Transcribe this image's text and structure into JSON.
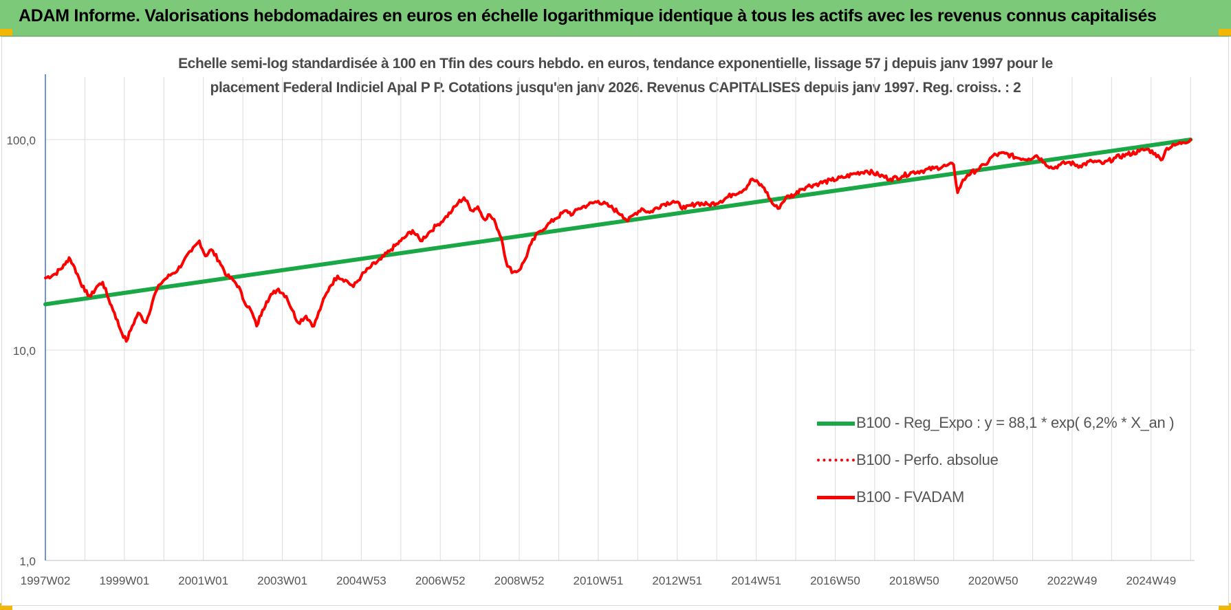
{
  "header": {
    "title": "ADAM Informe. Valorisations hebdomadaires en euros en échelle logarithmique identique à tous les actifs avec les revenus connus capitalisés"
  },
  "colors": {
    "header_bg": "#7dc97a",
    "corner_accent": "#f2b705",
    "trend": "#1aa846",
    "series": "#ff0000",
    "grid": "#dcdcdc",
    "axis": "#4472c4"
  },
  "chart_data": {
    "type": "line",
    "title": "Echelle semi-log standardisée à 100 en Tfin des cours hebdo. en euros, tendance exponentielle, lissage 57 j depuis janv 1997 pour le placement Federal Indiciel Apal P P. Cotations jusqu'en janv 2026. Revenus CAPITALISES depuis janv 1997. Reg. croiss. : 2",
    "title_lines": [
      "Echelle semi-log standardisée à 100 en Tfin des cours hebdo. en euros, tendance exponentielle, lissage 57 j depuis janv 1997 pour le",
      "placement Federal Indiciel Apal P P. Cotations jusqu'en janv 2026. Revenus CAPITALISES depuis janv 1997. Reg. croiss. : 2"
    ],
    "yscale": "log",
    "ylim": [
      1,
      100
    ],
    "y_ticks": [
      "1,0",
      "10,0",
      "100,0"
    ],
    "y_tick_values": [
      1,
      10,
      100
    ],
    "x_range": [
      1997.0,
      2026.1
    ],
    "x_tick_labels": [
      "1997W02",
      "1999W01",
      "2001W01",
      "2003W01",
      "2004W53",
      "2006W52",
      "2008W52",
      "2010W51",
      "2012W51",
      "2014W51",
      "2016W50",
      "2018W50",
      "2020W50",
      "2022W49",
      "2024W49"
    ],
    "x_tick_positions": [
      1997.0,
      1999.0,
      2001.0,
      2003.0,
      2005.0,
      2007.0,
      2009.0,
      2011.0,
      2013.0,
      2015.0,
      2017.0,
      2019.0,
      2021.0,
      2023.0,
      2025.0
    ],
    "grid": true,
    "legend_position": "bottom-right",
    "series": [
      {
        "name": "B100 - Reg_Expo : y = 88,1 * exp( 6,2% *  X_an )",
        "style": "solid-thick",
        "color": "#1aa846",
        "x": [
          1997.0,
          2026.0
        ],
        "y": [
          16.5,
          100.0
        ]
      },
      {
        "name": "B100 - Perfo. absolue",
        "style": "dotted",
        "color": "#ff0000",
        "x": [],
        "y": []
      },
      {
        "name": "B100 - FVADAM",
        "style": "solid",
        "color": "#ff0000",
        "x": [
          1997.0,
          1997.25,
          1997.5,
          1997.6,
          1997.7,
          1998.0,
          1998.15,
          1998.3,
          1998.45,
          1998.6,
          1998.75,
          1998.9,
          1999.05,
          1999.2,
          1999.35,
          1999.55,
          1999.75,
          1999.9,
          2000.0,
          2000.2,
          2000.35,
          2000.5,
          2000.7,
          2000.9,
          2001.05,
          2001.2,
          2001.4,
          2001.6,
          2001.75,
          2001.9,
          2002.0,
          2002.2,
          2002.35,
          2002.5,
          2002.6,
          2002.75,
          2002.9,
          2003.1,
          2003.25,
          2003.4,
          2003.6,
          2003.8,
          2004.0,
          2004.2,
          2004.4,
          2004.6,
          2004.8,
          2005.0,
          2005.25,
          2005.5,
          2005.75,
          2006.0,
          2006.15,
          2006.3,
          2006.5,
          2006.7,
          2006.9,
          2007.1,
          2007.3,
          2007.45,
          2007.6,
          2007.8,
          2007.95,
          2008.1,
          2008.25,
          2008.4,
          2008.55,
          2008.7,
          2008.85,
          2009.0,
          2009.15,
          2009.3,
          2009.5,
          2009.7,
          2009.9,
          2010.2,
          2010.35,
          2010.5,
          2010.75,
          2011.0,
          2011.3,
          2011.6,
          2011.75,
          2011.9,
          2012.1,
          2012.3,
          2012.6,
          2012.9,
          2013.2,
          2013.5,
          2013.8,
          2014.1,
          2014.4,
          2014.7,
          2014.9,
          2015.2,
          2015.4,
          2015.55,
          2015.75,
          2016.0,
          2016.1,
          2016.3,
          2016.6,
          2016.9,
          2017.2,
          2017.5,
          2017.8,
          2018.1,
          2018.4,
          2018.7,
          2018.95,
          2019.2,
          2019.5,
          2019.8,
          2020.0,
          2020.1,
          2020.2,
          2020.35,
          2020.6,
          2020.8,
          2021.0,
          2021.3,
          2021.6,
          2021.9,
          2022.1,
          2022.3,
          2022.5,
          2022.7,
          2022.9,
          2023.2,
          2023.5,
          2023.8,
          2024.1,
          2024.4,
          2024.7,
          2024.9,
          2025.1,
          2025.25,
          2025.4,
          2025.6,
          2025.8,
          2026.0
        ],
        "y": [
          22.0,
          23.0,
          25.5,
          27.5,
          25.5,
          19.0,
          18.0,
          20.0,
          21.0,
          17.5,
          15.0,
          12.5,
          11.0,
          13.0,
          15.0,
          13.5,
          18.0,
          20.5,
          21.5,
          23.0,
          24.0,
          26.5,
          29.5,
          33.0,
          28.0,
          30.0,
          26.5,
          22.5,
          21.5,
          20.0,
          17.5,
          15.5,
          13.0,
          15.5,
          17.0,
          18.5,
          19.5,
          18.0,
          15.5,
          13.5,
          14.5,
          13.0,
          16.5,
          20.0,
          22.5,
          21.5,
          20.0,
          22.5,
          25.0,
          27.0,
          30.0,
          33.0,
          35.0,
          37.0,
          33.0,
          36.0,
          39.0,
          42.0,
          46.0,
          50.0,
          53.0,
          46.0,
          48.0,
          42.0,
          44.0,
          40.0,
          34.0,
          25.0,
          23.5,
          24.0,
          27.0,
          32.0,
          36.5,
          39.0,
          42.0,
          46.0,
          44.0,
          47.0,
          49.0,
          51.0,
          48.0,
          44.0,
          41.0,
          44.0,
          47.0,
          45.0,
          49.0,
          51.0,
          47.0,
          50.0,
          49.0,
          51.0,
          55.0,
          58.0,
          65.0,
          59.0,
          50.0,
          47.0,
          53.0,
          55.0,
          58.0,
          60.0,
          62.0,
          64.0,
          66.0,
          69.0,
          71.0,
          68.0,
          65.0,
          67.0,
          70.0,
          71.0,
          73.0,
          75.0,
          76.0,
          56.0,
          62.0,
          68.0,
          72.0,
          76.0,
          84.0,
          86.0,
          82.0,
          81.0,
          84.0,
          78.0,
          73.0,
          76.0,
          78.0,
          75.0,
          79.0,
          77.0,
          82.0,
          85.0,
          88.0,
          90.0,
          86.0,
          80.0,
          91.0,
          94.0,
          97.0,
          100.0
        ]
      }
    ]
  }
}
